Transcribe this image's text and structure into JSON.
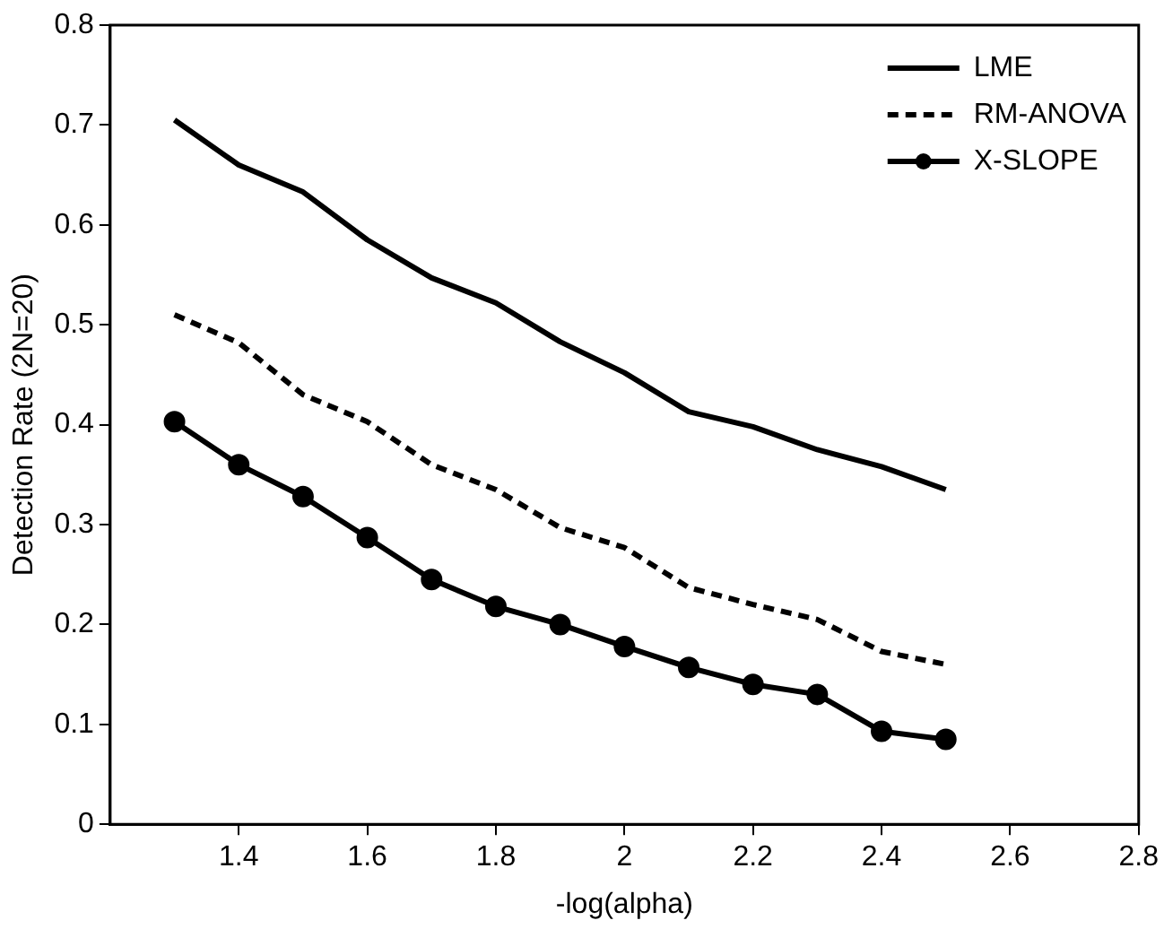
{
  "chart_data": {
    "type": "line",
    "xlabel": "-log(alpha)",
    "ylabel": "Detection Rate (2N=20)",
    "x": [
      1.3,
      1.4,
      1.5,
      1.6,
      1.7,
      1.8,
      1.9,
      2.0,
      2.1,
      2.2,
      2.3,
      2.4,
      2.5
    ],
    "series": [
      {
        "name": "LME",
        "color": "#000000",
        "line_style": "solid",
        "marker": "none",
        "values": [
          0.705,
          0.66,
          0.633,
          0.585,
          0.547,
          0.522,
          0.483,
          0.452,
          0.413,
          0.398,
          0.375,
          0.358,
          0.335
        ]
      },
      {
        "name": "RM-ANOVA",
        "color": "#000000",
        "line_style": "dashed",
        "marker": "none",
        "values": [
          0.51,
          0.482,
          0.43,
          0.403,
          0.36,
          0.335,
          0.297,
          0.277,
          0.237,
          0.22,
          0.205,
          0.173,
          0.16
        ]
      },
      {
        "name": "X-SLOPE",
        "color": "#000000",
        "line_style": "solid",
        "marker": "circle",
        "values": [
          0.403,
          0.36,
          0.328,
          0.287,
          0.245,
          0.218,
          0.2,
          0.178,
          0.157,
          0.14,
          0.13,
          0.093,
          0.085
        ]
      }
    ],
    "xlim": [
      1.2,
      2.8
    ],
    "xticks": [
      1.4,
      1.6,
      1.8,
      2,
      2.2,
      2.4,
      2.6,
      2.8
    ],
    "ylim": [
      0,
      0.8
    ],
    "yticks": [
      0,
      0.1,
      0.2,
      0.3,
      0.4,
      0.5,
      0.6,
      0.7,
      0.8
    ],
    "grid": false,
    "legend": "top right"
  }
}
